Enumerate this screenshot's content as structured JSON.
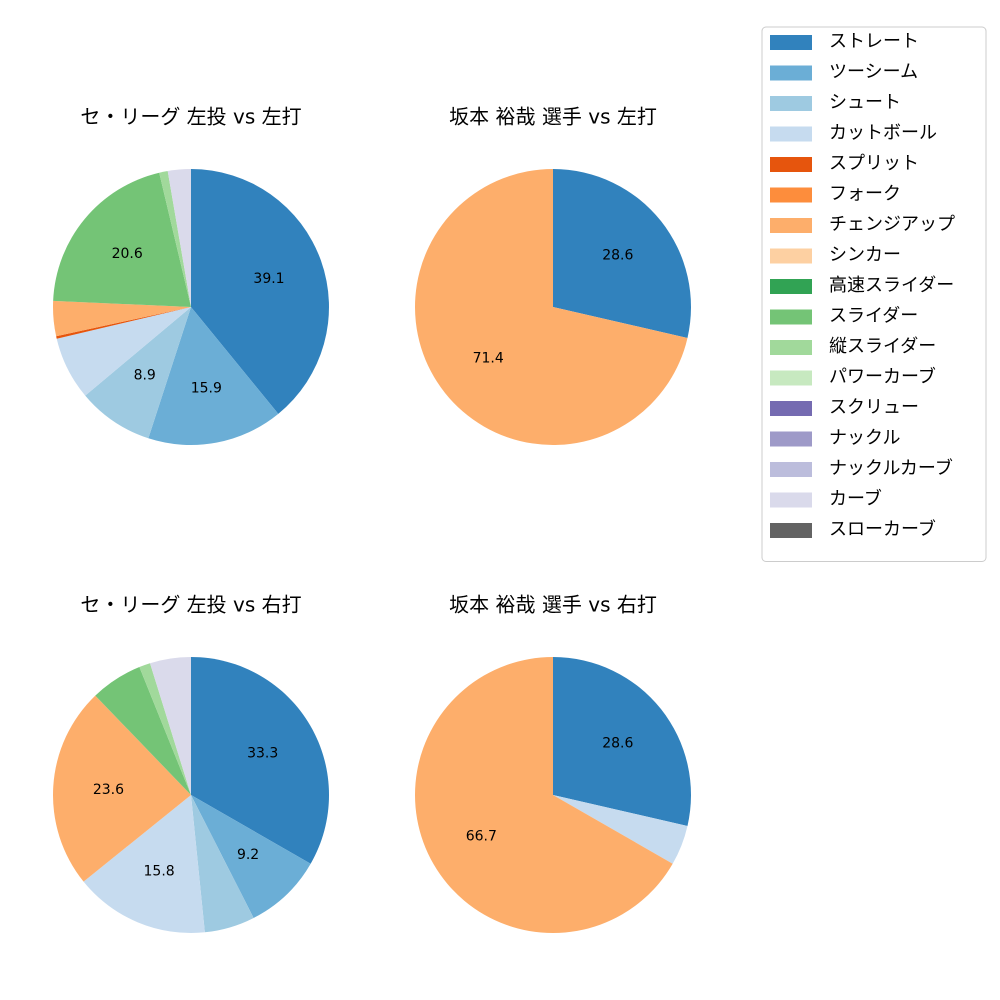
{
  "legend": {
    "items": [
      {
        "label": "ストレート",
        "color": "#3182bd"
      },
      {
        "label": "ツーシーム",
        "color": "#6baed6"
      },
      {
        "label": "シュート",
        "color": "#9ecae1"
      },
      {
        "label": "カットボール",
        "color": "#c6dbef"
      },
      {
        "label": "スプリット",
        "color": "#e6550d"
      },
      {
        "label": "フォーク",
        "color": "#fd8d3c"
      },
      {
        "label": "チェンジアップ",
        "color": "#fdae6b"
      },
      {
        "label": "シンカー",
        "color": "#fdd0a2"
      },
      {
        "label": "高速スライダー",
        "color": "#31a354"
      },
      {
        "label": "スライダー",
        "color": "#74c476"
      },
      {
        "label": "縦スライダー",
        "color": "#a1d99b"
      },
      {
        "label": "パワーカーブ",
        "color": "#c7e9c0"
      },
      {
        "label": "スクリュー",
        "color": "#756bb1"
      },
      {
        "label": "ナックル",
        "color": "#9e9ac8"
      },
      {
        "label": "ナックルカーブ",
        "color": "#bcbddc"
      },
      {
        "label": "カーブ",
        "color": "#dadaeb"
      },
      {
        "label": "スローカーブ",
        "color": "#636363"
      }
    ]
  },
  "chart_data": [
    {
      "type": "pie",
      "title": "セ・リーグ 左投 vs 左打",
      "slices": [
        {
          "category": "ストレート",
          "value": 39.1,
          "label": "39.1"
        },
        {
          "category": "ツーシーム",
          "value": 15.9,
          "label": "15.9"
        },
        {
          "category": "シュート",
          "value": 8.9,
          "label": "8.9"
        },
        {
          "category": "カットボール",
          "value": 7.4,
          "label": ""
        },
        {
          "category": "スプリット",
          "value": 0.3,
          "label": ""
        },
        {
          "category": "チェンジアップ",
          "value": 4.1,
          "label": ""
        },
        {
          "category": "スライダー",
          "value": 20.6,
          "label": "20.6"
        },
        {
          "category": "縦スライダー",
          "value": 1.0,
          "label": ""
        },
        {
          "category": "カーブ",
          "value": 2.7,
          "label": ""
        }
      ]
    },
    {
      "type": "pie",
      "title": "坂本 裕哉 選手 vs 左打",
      "slices": [
        {
          "category": "ストレート",
          "value": 28.6,
          "label": "28.6"
        },
        {
          "category": "チェンジアップ",
          "value": 71.4,
          "label": "71.4"
        }
      ]
    },
    {
      "type": "pie",
      "title": "セ・リーグ 左投 vs 右打",
      "slices": [
        {
          "category": "ストレート",
          "value": 33.3,
          "label": "33.3"
        },
        {
          "category": "ツーシーム",
          "value": 9.2,
          "label": "9.2"
        },
        {
          "category": "シュート",
          "value": 5.9,
          "label": ""
        },
        {
          "category": "カットボール",
          "value": 15.8,
          "label": "15.8"
        },
        {
          "category": "チェンジアップ",
          "value": 23.6,
          "label": "23.6"
        },
        {
          "category": "スライダー",
          "value": 6.1,
          "label": ""
        },
        {
          "category": "縦スライダー",
          "value": 1.3,
          "label": ""
        },
        {
          "category": "カーブ",
          "value": 4.8,
          "label": ""
        }
      ]
    },
    {
      "type": "pie",
      "title": "坂本 裕哉 選手 vs 右打",
      "slices": [
        {
          "category": "ストレート",
          "value": 28.6,
          "label": "28.6"
        },
        {
          "category": "カットボール",
          "value": 4.7,
          "label": ""
        },
        {
          "category": "チェンジアップ",
          "value": 66.7,
          "label": "66.7"
        }
      ]
    }
  ]
}
